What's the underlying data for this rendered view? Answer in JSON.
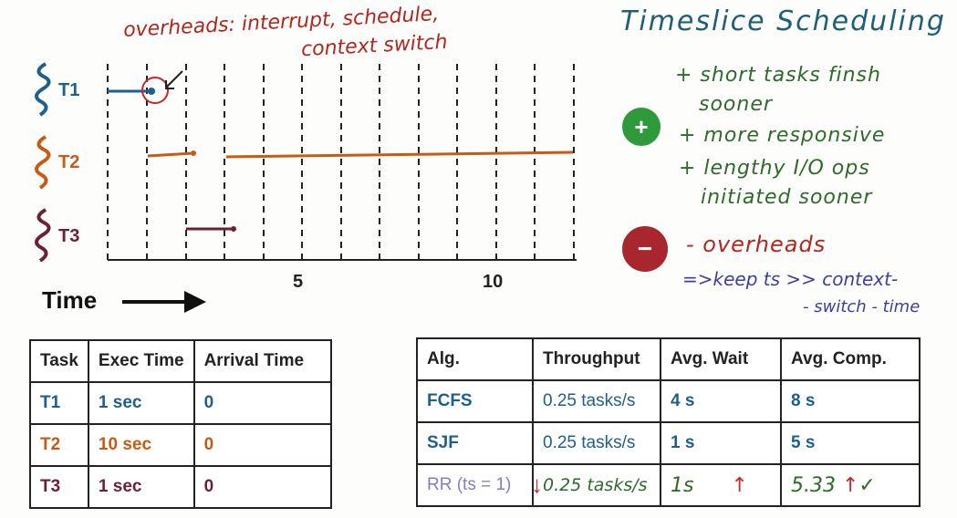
{
  "annotation": {
    "line1": "overheads: interrupt, schedule,",
    "line2": "context switch"
  },
  "title": "Timeslice Scheduling",
  "pros": {
    "symbol": "+",
    "items": [
      "+ short tasks finsh",
      "sooner",
      "+ more responsive",
      "+ lengthy I/O ops",
      "initiated sooner"
    ]
  },
  "cons": {
    "symbol": "−",
    "item": "- overheads"
  },
  "note": {
    "line1": "=>keep ts >> context-",
    "line2": "- switch - time"
  },
  "timeline": {
    "tasks": [
      {
        "label": "T1",
        "color": "#1f5f8b"
      },
      {
        "label": "T2",
        "color": "#c75a16"
      },
      {
        "label": "T3",
        "color": "#6b1f3a"
      }
    ],
    "tick_labels": [
      "5",
      "10"
    ],
    "axis_label": "Time"
  },
  "task_table": {
    "headers": [
      "Task",
      "Exec Time",
      "Arrival Time"
    ],
    "rows": [
      {
        "task": "T1",
        "exec": "1 sec",
        "arrival": "0"
      },
      {
        "task": "T2",
        "exec": "10 sec",
        "arrival": "0"
      },
      {
        "task": "T3",
        "exec": "1 sec",
        "arrival": "0"
      }
    ]
  },
  "alg_table": {
    "headers": [
      "Alg.",
      "Throughput",
      "Avg. Wait",
      "Avg. Comp."
    ],
    "rows": [
      {
        "alg": "FCFS",
        "throughput": "0.25 tasks/s",
        "wait": "4 s",
        "comp": "8 s"
      },
      {
        "alg": "SJF",
        "throughput": "0.25 tasks/s",
        "wait": "1 s",
        "comp": "5 s"
      },
      {
        "alg": "RR (ts = 1)",
        "throughput": "0.25 tasks/s",
        "wait": "1s",
        "comp": "5.33"
      }
    ]
  },
  "colors": {
    "t1": "#1f5f8b",
    "t2": "#c75a16",
    "t3": "#6b1f3a",
    "pro": "#2e6a2b",
    "con": "#b3261e",
    "title": "#1f5f78"
  }
}
